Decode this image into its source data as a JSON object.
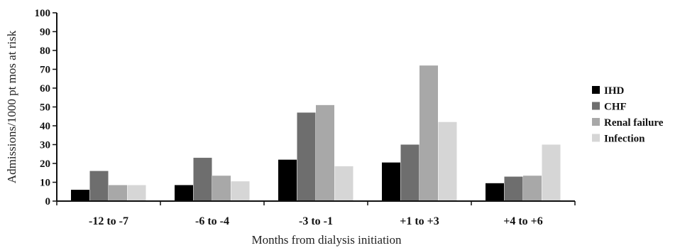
{
  "chart_data": {
    "type": "bar",
    "categories": [
      "-12 to -7",
      "-6 to -4",
      "-3 to -1",
      "+1 to +3",
      "+4 to +6"
    ],
    "series": [
      {
        "name": "IHD",
        "color": "#000000",
        "values": [
          6,
          8.5,
          22,
          20.5,
          9.5
        ]
      },
      {
        "name": "CHF",
        "color": "#6e6e6e",
        "values": [
          16,
          23,
          47,
          30,
          13
        ]
      },
      {
        "name": "Renal failure",
        "color": "#a8a8a8",
        "values": [
          8.5,
          13.5,
          51,
          72,
          13.5
        ]
      },
      {
        "name": "Infection",
        "color": "#d6d6d6",
        "values": [
          8.5,
          10.5,
          18.5,
          42,
          30
        ]
      }
    ],
    "ylim": [
      0,
      100
    ],
    "yticks": [
      "0",
      "10",
      "20",
      "30",
      "40",
      "50",
      "60",
      "70",
      "80",
      "90",
      "100"
    ],
    "ylabel": "Admissions/1000 pt mos at risk",
    "xlabel": "Months from dialysis initiation",
    "legend_position": "right",
    "grid": false
  }
}
